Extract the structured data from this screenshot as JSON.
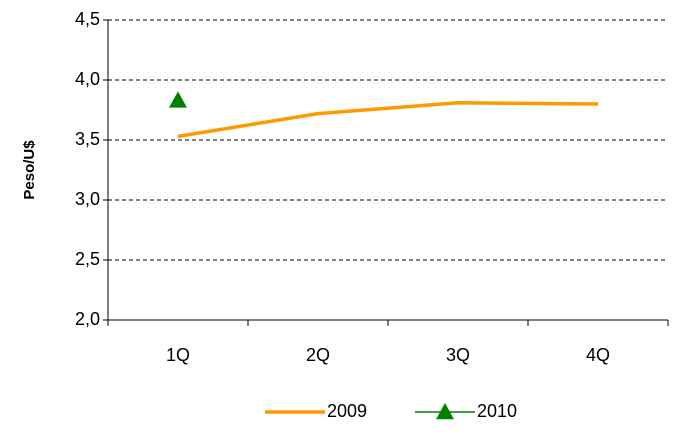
{
  "chart_data": {
    "type": "line",
    "categories": [
      "1Q",
      "2Q",
      "3Q",
      "4Q"
    ],
    "series": [
      {
        "name": "2009",
        "color": "#ff9900",
        "marker": "none",
        "values": [
          3.53,
          3.72,
          3.81,
          3.8
        ]
      },
      {
        "name": "2010",
        "color": "#008000",
        "marker": "triangle",
        "values": [
          3.83,
          null,
          null,
          null
        ]
      }
    ],
    "ylabel": "Peso/U$",
    "ylim": [
      2,
      4.5
    ],
    "yticks": [
      {
        "value": 2,
        "label": "2,0"
      },
      {
        "value": 2.5,
        "label": "2,5"
      },
      {
        "value": 3,
        "label": "3,0"
      },
      {
        "value": 3.5,
        "label": "3,5"
      },
      {
        "value": 4,
        "label": "4,0"
      },
      {
        "value": 4.5,
        "label": "4,5"
      }
    ],
    "grid": true,
    "legend": "bottom"
  }
}
